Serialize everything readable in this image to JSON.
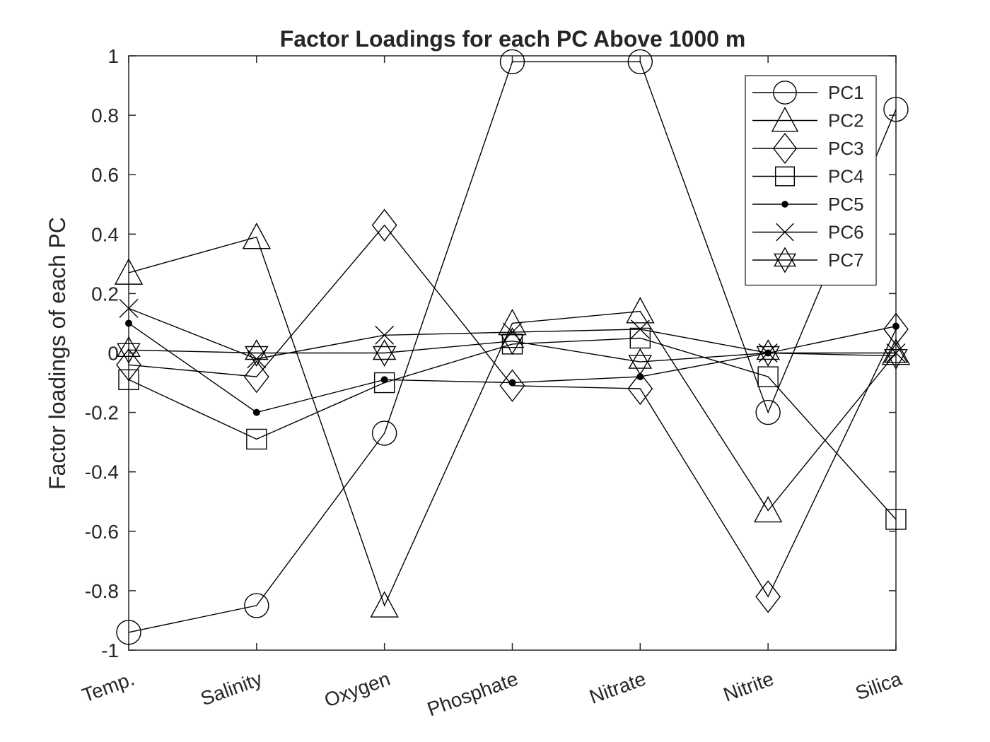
{
  "chart_data": {
    "type": "line",
    "title": "Factor Loadings for each PC Above 1000 m",
    "xlabel": "",
    "ylabel": "Factor loadings of each PC",
    "categories": [
      "Temp.",
      "Salinity",
      "Oxygen",
      "Phosphate",
      "Nitrate",
      "Nitrite",
      "Silica"
    ],
    "ylim": [
      -1,
      1
    ],
    "yticks": [
      "-1",
      "-0.8",
      "-0.6",
      "-0.4",
      "-0.2",
      "0",
      "0.2",
      "0.4",
      "0.6",
      "0.8",
      "1"
    ],
    "grid": false,
    "legend_position": "top-right",
    "line_color": "#000000",
    "series": [
      {
        "name": "PC1",
        "marker": "circle",
        "values": [
          -0.94,
          -0.85,
          -0.27,
          0.98,
          0.98,
          -0.2,
          0.82
        ]
      },
      {
        "name": "PC2",
        "marker": "triangle",
        "values": [
          0.27,
          0.39,
          -0.85,
          0.1,
          0.14,
          -0.53,
          0.0
        ]
      },
      {
        "name": "PC3",
        "marker": "diamond",
        "values": [
          -0.04,
          -0.08,
          0.43,
          -0.11,
          -0.12,
          -0.82,
          0.08
        ]
      },
      {
        "name": "PC4",
        "marker": "square",
        "values": [
          -0.09,
          -0.29,
          -0.1,
          0.03,
          0.05,
          -0.08,
          -0.56
        ]
      },
      {
        "name": "PC5",
        "marker": "dot",
        "values": [
          0.1,
          -0.2,
          -0.09,
          -0.1,
          -0.08,
          0.0,
          0.09
        ]
      },
      {
        "name": "PC6",
        "marker": "x",
        "values": [
          0.15,
          -0.02,
          0.06,
          0.07,
          0.08,
          0.0,
          0.0
        ]
      },
      {
        "name": "PC7",
        "marker": "hexagram",
        "values": [
          0.01,
          0.0,
          0.0,
          0.04,
          -0.03,
          0.0,
          -0.01
        ]
      }
    ]
  }
}
